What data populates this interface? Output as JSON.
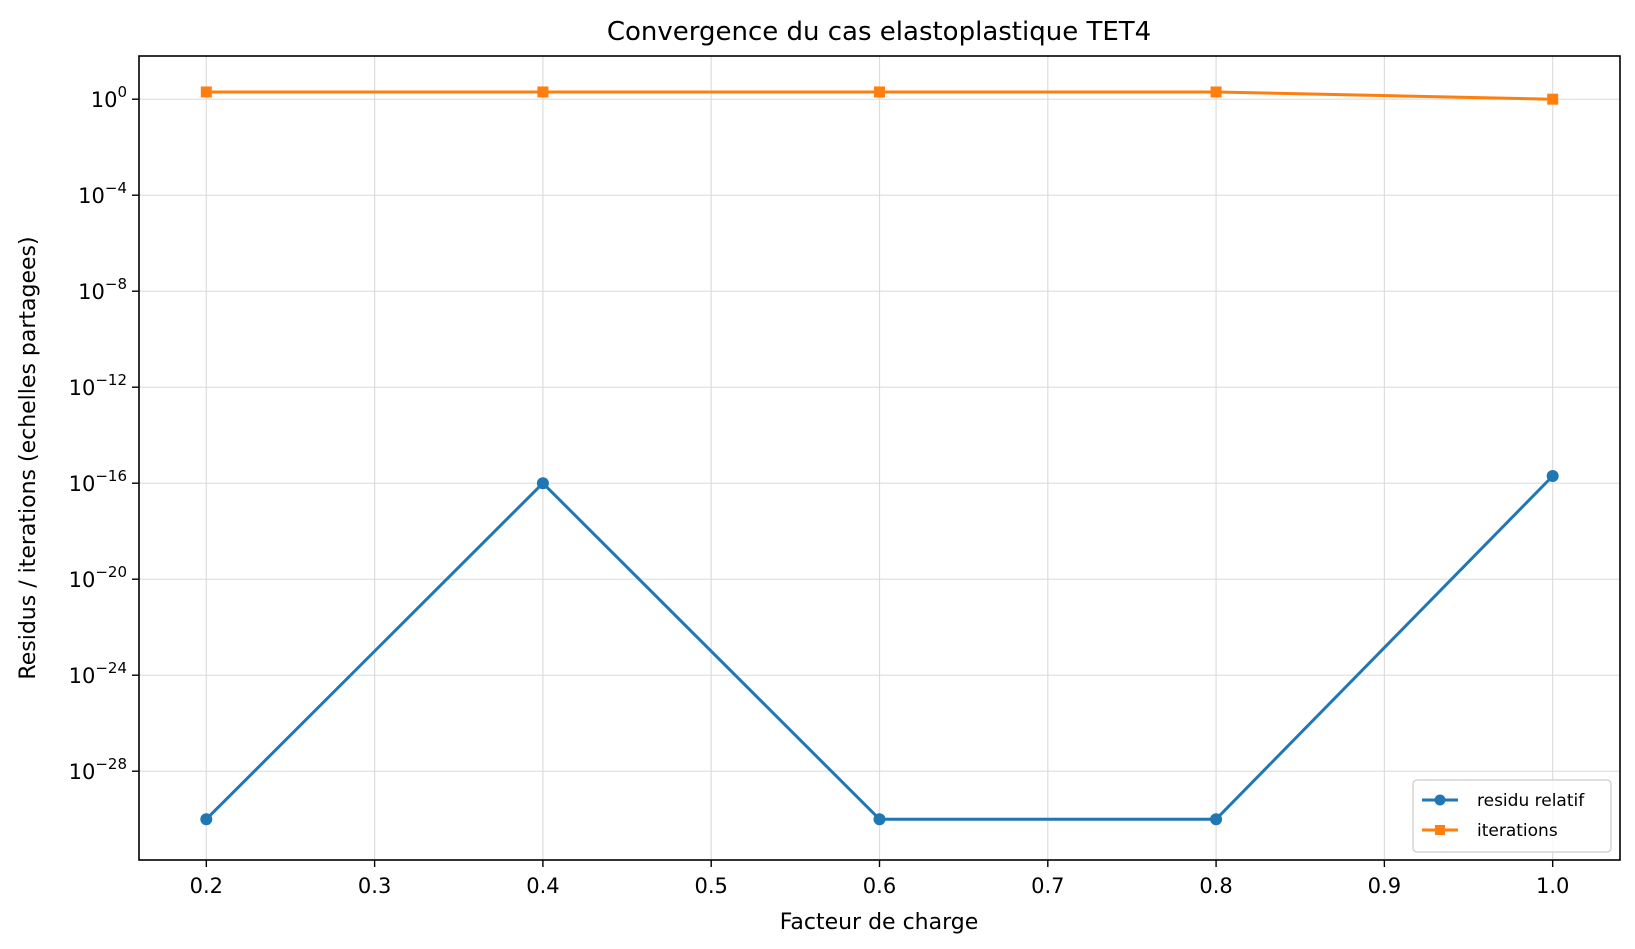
{
  "chart_data": {
    "type": "line",
    "title": "Convergence du cas elastoplastique TET4",
    "xlabel": "Facteur de charge",
    "ylabel": "Residus / iterations (echelles partagees)",
    "x": [
      0.2,
      0.4,
      0.6,
      0.8,
      1.0
    ],
    "xlim": [
      0.16,
      1.04
    ],
    "xticks": [
      0.2,
      0.3,
      0.4,
      0.5,
      0.6,
      0.7,
      0.8,
      0.9,
      1.0
    ],
    "xtick_labels": [
      "0.2",
      "0.3",
      "0.4",
      "0.5",
      "0.6",
      "0.7",
      "0.8",
      "0.9",
      "1.0"
    ],
    "yscale": "log",
    "ylim_exponent": [
      -31.7,
      1.8
    ],
    "yticks_exponent": [
      0,
      -4,
      -8,
      -12,
      -16,
      -20,
      -24,
      -28
    ],
    "ytick_base": "10",
    "ytick_exponents": [
      "0",
      "−4",
      "−8",
      "−12",
      "−16",
      "−20",
      "−24",
      "−28"
    ],
    "grid": true,
    "legend_position": "lower-right",
    "series": [
      {
        "name": "residu relatif",
        "color": "#1f77b4",
        "marker": "circle",
        "values": [
          1e-30,
          1e-16,
          1e-30,
          1e-30,
          2e-16
        ]
      },
      {
        "name": "iterations",
        "color": "#ff7f0e",
        "marker": "square",
        "values": [
          2,
          2,
          2,
          2,
          1
        ]
      }
    ]
  }
}
